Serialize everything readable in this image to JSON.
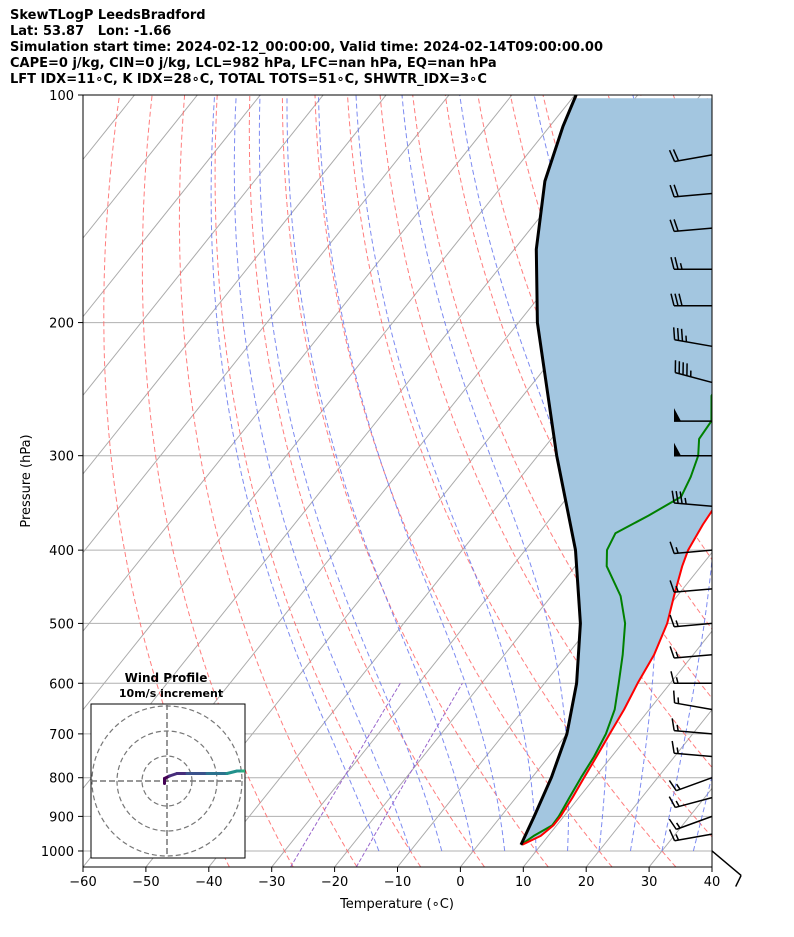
{
  "header": {
    "title": "SkewTLogP LeedsBradford",
    "location": "Lat: 53.87   Lon: -1.66",
    "times": "Simulation start time: 2024-02-12_00:00:00, Valid time: 2024-02-14T09:00:00.00",
    "indices1": "CAPE=0 j/kg, CIN=0 j/kg, LCL=982 hPa, LFC=nan hPa, EQ=nan hPa",
    "indices2": "LFT IDX=11∘C, K IDX=28∘C, TOTAL TOTS=51∘C, SHWTR_IDX=3∘C"
  },
  "chart_data": {
    "type": "line",
    "xlabel": "Temperature (∘C)",
    "ylabel": "Pressure (hPa)",
    "xlim": [
      -60,
      40
    ],
    "ylim": [
      1050,
      100
    ],
    "y_scale": "log",
    "x_ticks": [
      "−60",
      "−50",
      "−40",
      "−30",
      "−20",
      "−10",
      "0",
      "10",
      "20",
      "30",
      "40"
    ],
    "y_ticks": [
      "1000",
      "900",
      "800",
      "700",
      "600",
      "500",
      "400",
      "300",
      "200",
      "100"
    ],
    "grid": true,
    "colors": {
      "temperature": "#ff0000",
      "dewpoint": "#008000",
      "parcel": "#000000",
      "shading": "#a3c6e0",
      "dry_adiabats": "#ff6666",
      "moist_adiabats": "#6677ee",
      "mixing_ratio": "#9966cc",
      "isotherms": "#aaaaaa"
    },
    "temperature": [
      [
        981,
        7.0
      ],
      [
        955,
        8.8
      ],
      [
        925,
        9.5
      ],
      [
        900,
        9.5
      ],
      [
        850,
        9.0
      ],
      [
        800,
        8.3
      ],
      [
        750,
        7.6
      ],
      [
        700,
        6.8
      ],
      [
        650,
        6.0
      ],
      [
        600,
        4.8
      ],
      [
        550,
        3.8
      ],
      [
        500,
        1.9
      ],
      [
        460,
        -0.5
      ],
      [
        420,
        -3.0
      ],
      [
        400,
        -4.1
      ],
      [
        370,
        -5.0
      ],
      [
        340,
        -5.6
      ],
      [
        320,
        -6.2
      ],
      [
        300,
        -8.0
      ],
      [
        280,
        -10.5
      ],
      [
        260,
        -13.0
      ],
      [
        245,
        -14.2
      ],
      [
        230,
        -11.0
      ],
      [
        215,
        -7.0
      ],
      [
        200,
        -3.5
      ],
      [
        180,
        1.0
      ],
      [
        160,
        5.5
      ],
      [
        145,
        8.0
      ],
      [
        130,
        9.5
      ],
      [
        120,
        11.5
      ],
      [
        110,
        12.2
      ],
      [
        100,
        13.0
      ]
    ],
    "dewpoint": [
      [
        981,
        6.8
      ],
      [
        955,
        7.7
      ],
      [
        925,
        9.3
      ],
      [
        900,
        9.2
      ],
      [
        850,
        8.5
      ],
      [
        800,
        7.8
      ],
      [
        750,
        7.2
      ],
      [
        700,
        6.2
      ],
      [
        650,
        4.5
      ],
      [
        600,
        1.8
      ],
      [
        550,
        -1.2
      ],
      [
        500,
        -4.8
      ],
      [
        460,
        -9.0
      ],
      [
        420,
        -15.0
      ],
      [
        400,
        -17.0
      ],
      [
        380,
        -17.8
      ],
      [
        360,
        -14.8
      ],
      [
        340,
        -12.0
      ],
      [
        320,
        -13.0
      ],
      [
        300,
        -14.5
      ],
      [
        285,
        -16.5
      ],
      [
        270,
        -16.8
      ],
      [
        250,
        -20.0
      ],
      [
        235,
        -20.8
      ],
      [
        220,
        -24.0
      ],
      [
        200,
        -25.3
      ],
      [
        180,
        -22.8
      ],
      [
        160,
        -18.0
      ],
      [
        140,
        -14.2
      ],
      [
        120,
        -7.5
      ],
      [
        100,
        4.0
      ]
    ],
    "parcel": [
      [
        981,
        6.8
      ],
      [
        900,
        5.3
      ],
      [
        800,
        3.1
      ],
      [
        700,
        0.0
      ],
      [
        600,
        -4.9
      ],
      [
        500,
        -11.9
      ],
      [
        400,
        -22.0
      ],
      [
        300,
        -37.0
      ],
      [
        200,
        -57.0
      ],
      [
        160,
        -66.5
      ],
      [
        130,
        -73.8
      ],
      [
        110,
        -77.9
      ],
      [
        100,
        -79.8
      ]
    ],
    "wind_barbs": [
      {
        "p": 1000,
        "spd_kt": 10,
        "dir": 130
      },
      {
        "p": 950,
        "spd_kt": 15,
        "dir": 260
      },
      {
        "p": 900,
        "spd_kt": 15,
        "dir": 250
      },
      {
        "p": 850,
        "spd_kt": 15,
        "dir": 255
      },
      {
        "p": 800,
        "spd_kt": 15,
        "dir": 250
      },
      {
        "p": 750,
        "spd_kt": 15,
        "dir": 275
      },
      {
        "p": 700,
        "spd_kt": 15,
        "dir": 275
      },
      {
        "p": 650,
        "spd_kt": 15,
        "dir": 280
      },
      {
        "p": 600,
        "spd_kt": 15,
        "dir": 270
      },
      {
        "p": 550,
        "spd_kt": 15,
        "dir": 265
      },
      {
        "p": 500,
        "spd_kt": 15,
        "dir": 265
      },
      {
        "p": 450,
        "spd_kt": 15,
        "dir": 265
      },
      {
        "p": 400,
        "spd_kt": 15,
        "dir": 265
      },
      {
        "p": 350,
        "spd_kt": 35,
        "dir": 275
      },
      {
        "p": 300,
        "spd_kt": 50,
        "dir": 270
      },
      {
        "p": 270,
        "spd_kt": 50,
        "dir": 270
      },
      {
        "p": 240,
        "spd_kt": 45,
        "dir": 285
      },
      {
        "p": 215,
        "spd_kt": 35,
        "dir": 280
      },
      {
        "p": 190,
        "spd_kt": 30,
        "dir": 270
      },
      {
        "p": 170,
        "spd_kt": 25,
        "dir": 270
      },
      {
        "p": 150,
        "spd_kt": 20,
        "dir": 265
      },
      {
        "p": 135,
        "spd_kt": 20,
        "dir": 265
      },
      {
        "p": 120,
        "spd_kt": 20,
        "dir": 260
      }
    ],
    "hodograph": {
      "title": "Wind Profile",
      "subtitle": "10m/s increment",
      "rings_ms": [
        10,
        20,
        30
      ],
      "uv": [
        [
          -1,
          -1
        ],
        [
          -1,
          1
        ],
        [
          1,
          2
        ],
        [
          4,
          3
        ],
        [
          8,
          3
        ],
        [
          12,
          3
        ],
        [
          16,
          3
        ],
        [
          20,
          3
        ],
        [
          24,
          3
        ],
        [
          28,
          4
        ],
        [
          30,
          4
        ],
        [
          33,
          4
        ],
        [
          37,
          3
        ],
        [
          40,
          2
        ],
        [
          42,
          1
        ],
        [
          38,
          -1
        ],
        [
          34,
          -1
        ],
        [
          32,
          1
        ]
      ]
    }
  }
}
